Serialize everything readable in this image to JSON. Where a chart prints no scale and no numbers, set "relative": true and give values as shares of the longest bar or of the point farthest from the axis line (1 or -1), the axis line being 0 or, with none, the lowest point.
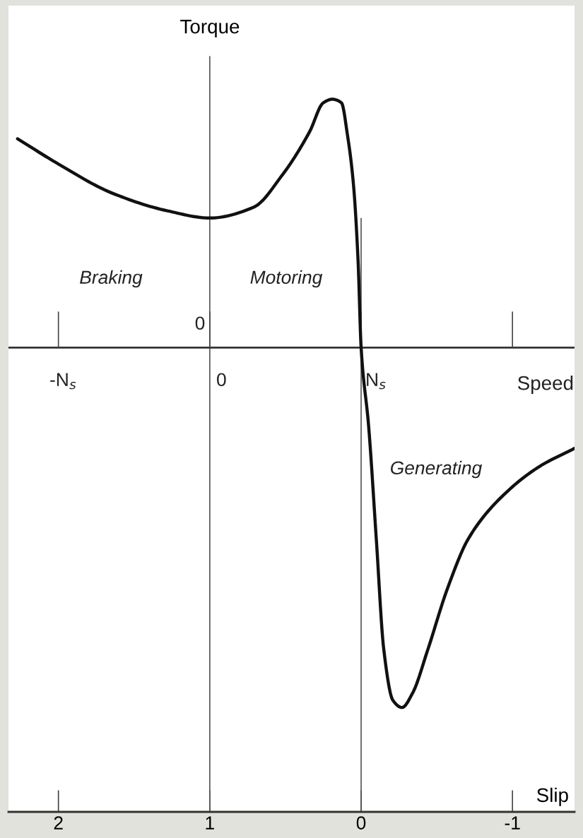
{
  "chart_data": {
    "type": "line",
    "relative": true,
    "xlabel": "Slip",
    "ylabel": "Torque",
    "x": [
      2.27,
      2.0,
      1.65,
      1.28,
      1.0,
      0.71,
      0.52,
      0.34,
      0.25,
      0.19,
      0.13,
      0.09,
      0.05,
      0.02,
      0.0,
      -0.05,
      -0.1,
      -0.15,
      -0.21,
      -0.27,
      -0.34,
      -0.44,
      -0.57,
      -0.71,
      -0.94,
      -1.18,
      -1.41
    ],
    "series": [
      {
        "color": "#111111",
        "values": [
          0.58,
          0.51,
          0.43,
          0.38,
          0.36,
          0.39,
          0.48,
          0.6,
          0.68,
          0.69,
          0.68,
          0.59,
          0.45,
          0.24,
          0.0,
          -0.22,
          -0.53,
          -0.84,
          -0.98,
          -1.0,
          -0.96,
          -0.84,
          -0.67,
          -0.53,
          -0.41,
          -0.33,
          -0.28
        ]
      }
    ],
    "xlim": [
      2.33,
      -1.41
    ],
    "xticks": [
      2,
      1,
      0,
      -1
    ],
    "ref_lines": [
      {
        "axis": "x",
        "value": 1,
        "label": null,
        "color": "#555555"
      },
      {
        "axis": "x",
        "value": 0,
        "label": null,
        "color": "#555555"
      }
    ],
    "annotations": [
      "0",
      "-N$_{s}$",
      "0",
      "N$_{s}$",
      "Speed",
      "Braking",
      "Motoring",
      "Generating"
    ],
    "tick_labels": "x",
    "grid": false,
    "legend": false,
    "marker": "none",
    "line_style": "solid"
  }
}
